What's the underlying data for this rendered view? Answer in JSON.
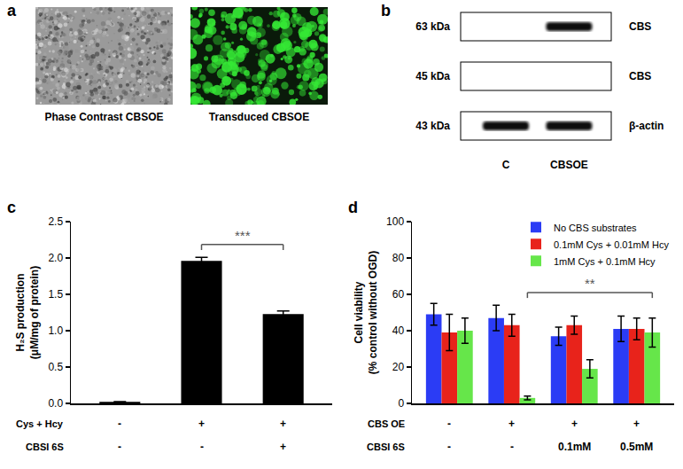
{
  "panel_a": {
    "label": "a",
    "images": [
      {
        "caption": "Phase Contrast CBSOE",
        "color": "#9a9a9a"
      },
      {
        "caption": "Transduced CBSOE",
        "color": "#35e835"
      }
    ]
  },
  "panel_b": {
    "label": "b",
    "columns": [
      "C",
      "CBSOE"
    ],
    "rows": [
      {
        "size": "63 kDa",
        "protein": "CBS",
        "bands": [
          false,
          true
        ]
      },
      {
        "size": "45 kDa",
        "protein": "CBS",
        "bands": [
          false,
          false
        ]
      },
      {
        "size": "43 kDa",
        "protein": "β-actin",
        "bands": [
          true,
          true
        ]
      }
    ]
  },
  "chart_data": [
    {
      "panel": "c",
      "type": "bar",
      "categories": [
        null,
        null,
        null
      ],
      "values": [
        0.02,
        1.96,
        1.23
      ],
      "errors": [
        0.005,
        0.05,
        0.04
      ],
      "color": "#000000",
      "ylim": [
        0,
        2.5
      ],
      "yticks": [
        {
          "value": 0,
          "label": "0.0"
        },
        0.5,
        {
          "value": 1,
          "label": "1.0"
        },
        1.5,
        {
          "value": 2,
          "label": "2.0"
        },
        2.5
      ],
      "y_label": [
        "H₂S production",
        "(μM/mg of protein)"
      ],
      "tick_labels": "y",
      "conditions": [
        {
          "label": "Cys + Hcy",
          "values": [
            "-",
            "+",
            "+"
          ]
        },
        {
          "label": "CBSI 6S",
          "values": [
            "-",
            "-",
            "+"
          ]
        }
      ],
      "significance": [
        {
          "text": "***",
          "between": [
            1,
            2
          ]
        }
      ]
    },
    {
      "panel": "d",
      "type": "bar",
      "categories": [
        null,
        null,
        null,
        null
      ],
      "series": [
        {
          "name": "No CBS substrates",
          "color": "#2b3cf5",
          "values": [
            49,
            47,
            37,
            41
          ],
          "errors": [
            6,
            7,
            5,
            7
          ]
        },
        {
          "name": "0.1mM Cys + 0.01mM Hcy",
          "color": "#e8231b",
          "values": [
            39,
            43,
            43,
            41
          ],
          "errors": [
            10,
            6,
            5,
            6
          ]
        },
        {
          "name": "1mM Cys + 0.1mM Hcy",
          "color": "#66e64a",
          "values": [
            40,
            3,
            19,
            39
          ],
          "errors": [
            7,
            1,
            5,
            8
          ]
        }
      ],
      "ylim": [
        0,
        100
      ],
      "yticks": [
        0,
        20,
        40,
        60,
        80,
        100
      ],
      "y_label": [
        "Cell viability",
        "(% control without OGD)"
      ],
      "legend": "top right",
      "tick_labels": "y",
      "conditions": [
        {
          "label": "CBS OE",
          "values": [
            "-",
            "+",
            "+",
            "+"
          ]
        },
        {
          "label": "CBSI 6S",
          "values": [
            "-",
            "-",
            "0.1mM",
            "0.5mM"
          ]
        }
      ],
      "significance": [
        {
          "text": "**",
          "series": 2,
          "between": [
            1,
            3
          ]
        }
      ]
    }
  ]
}
